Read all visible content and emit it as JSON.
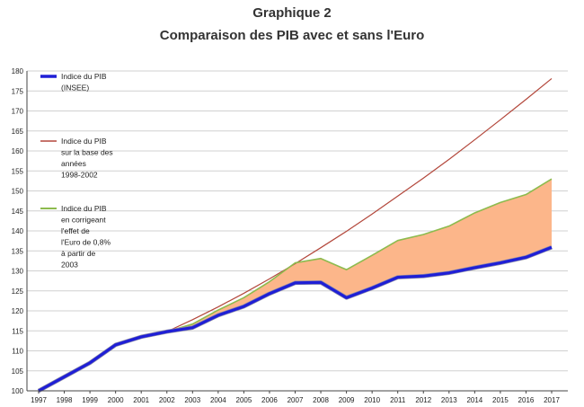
{
  "header": {
    "title": "Graphique 2",
    "subtitle": "Comparaison des PIB avec et sans l'Euro"
  },
  "chart_data": {
    "type": "line",
    "title": "Graphique 2",
    "subtitle": "Comparaison des PIB avec et sans l'Euro",
    "xlabel": "",
    "ylabel": "",
    "ylim": [
      100,
      180
    ],
    "ytick_step": 5,
    "grid": true,
    "legend_position": "left",
    "x": [
      "1997",
      "1998",
      "1999",
      "2000",
      "2001",
      "2002",
      "2003",
      "2004",
      "2005",
      "2006",
      "2007",
      "2008",
      "2009",
      "2010",
      "2011",
      "2012",
      "2013",
      "2014",
      "2015",
      "2016",
      "2017"
    ],
    "series": [
      {
        "name": "Indice du PIB (INSEE)",
        "legend_lines": [
          "Indice du PIB",
          "(INSEE)"
        ],
        "color": "#1f1fd6",
        "values": [
          100,
          103.5,
          107,
          111.5,
          113.5,
          114.8,
          115.8,
          118.9,
          121.1,
          124.3,
          127.0,
          127.1,
          123.3,
          125.7,
          128.4,
          128.7,
          129.5,
          130.8,
          132.0,
          133.4,
          135.9
        ]
      },
      {
        "name": "Indice du PIB sur la base des années 1998-2002",
        "legend_lines": [
          "Indice du PIB",
          "sur la base des",
          "années",
          "1998-2002"
        ],
        "color": "#b3473b",
        "values": [
          100,
          103.5,
          107,
          111.5,
          113.5,
          114.8,
          117.8,
          121.0,
          124.4,
          128.0,
          131.8,
          135.8,
          139.9,
          144.2,
          148.7,
          153.2,
          157.9,
          162.8,
          167.8,
          172.9,
          178.1
        ]
      },
      {
        "name": "Indice du PIB en corrigeant l'effet de l'Euro de 0,8% à partir de 2003",
        "legend_lines": [
          "Indice du PIB",
          "en corrigeant",
          "l'effet de",
          "l'Euro de 0,8%",
          "à partir de",
          "2003"
        ],
        "color": "#8dbb4e",
        "values": [
          100,
          103.5,
          107,
          111.5,
          113.5,
          114.8,
          116.7,
          120.2,
          123.3,
          127.3,
          132.0,
          133.1,
          130.3,
          133.9,
          137.6,
          139.1,
          141.2,
          144.5,
          147.1,
          149.1,
          153.0
        ]
      }
    ],
    "fill_between": {
      "upper_series": 2,
      "lower_series": 0,
      "color": "#fcb68a"
    }
  }
}
